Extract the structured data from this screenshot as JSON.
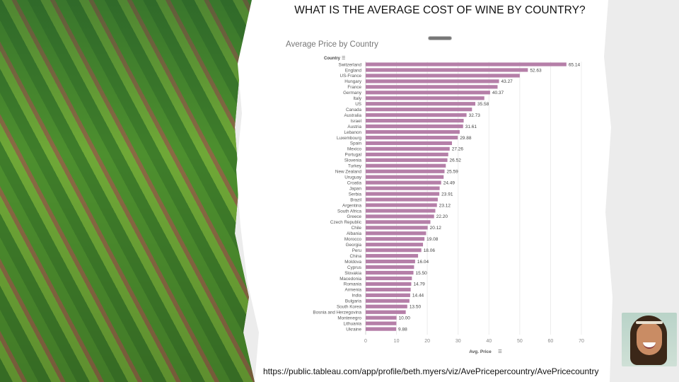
{
  "headline": "WHAT IS THE AVERAGE COST OF WINE BY COUNTRY?",
  "url": "https://public.tableau.com/app/profile/beth.myers/viz/AvePricepercountry/AvePricecountry",
  "colors": {
    "bar": "#b57fa8",
    "background": "#ececec"
  },
  "chart_data": {
    "type": "bar",
    "orientation": "horizontal",
    "title": "Average Price by Country",
    "ylabel": "Country",
    "xlabel": "Avg. Price",
    "xlim": [
      0,
      70
    ],
    "xticks": [
      0,
      10,
      20,
      30,
      40,
      50,
      60,
      70
    ],
    "grid": true,
    "categories": [
      "Switzerland",
      "England",
      "US-France",
      "Hungary",
      "France",
      "Germany",
      "Italy",
      "US",
      "Canada",
      "Australia",
      "Israel",
      "Austria",
      "Lebanon",
      "Luxembourg",
      "Spain",
      "Mexico",
      "Portugal",
      "Slovenia",
      "Turkey",
      "New Zealand",
      "Uruguay",
      "Croatia",
      "Japan",
      "Serbia",
      "Brazil",
      "Argentina",
      "South Africa",
      "Greece",
      "Czech Republic",
      "Chile",
      "Albania",
      "Morocco",
      "Georgia",
      "Peru",
      "China",
      "Moldova",
      "Cyprus",
      "Slovakia",
      "Macedonia",
      "Romania",
      "Armenia",
      "India",
      "Bulgaria",
      "South Korea",
      "Bosnia and Herzegovina",
      "Montenegro",
      "Lithuania",
      "Ukraine"
    ],
    "values": [
      65.14,
      52.63,
      50.0,
      43.27,
      42.8,
      40.37,
      38.5,
      35.58,
      34.5,
      32.73,
      31.8,
      31.61,
      30.5,
      29.88,
      28.0,
      27.26,
      26.8,
      26.52,
      26.0,
      25.59,
      25.3,
      24.49,
      24.0,
      23.91,
      23.4,
      23.12,
      22.6,
      22.2,
      21.0,
      20.12,
      19.6,
      19.08,
      18.6,
      18.06,
      17.0,
      16.04,
      15.7,
      15.5,
      15.0,
      14.79,
      14.6,
      14.44,
      14.2,
      13.5,
      13.0,
      10.0,
      9.95,
      9.88
    ],
    "labels": [
      "65.14",
      "52.63",
      "",
      "43.27",
      "",
      "40.37",
      "",
      "35.58",
      "",
      "32.73",
      "",
      "31.61",
      "",
      "29.88",
      "",
      "27.26",
      "",
      "26.52",
      "",
      "25.59",
      "",
      "24.49",
      "",
      "23.91",
      "",
      "23.12",
      "",
      "22.20",
      "",
      "20.12",
      "",
      "19.08",
      "",
      "18.06",
      "",
      "16.04",
      "",
      "15.50",
      "",
      "14.79",
      "",
      "14.44",
      "",
      "13.50",
      "",
      "10.00",
      "",
      "9.88"
    ]
  }
}
